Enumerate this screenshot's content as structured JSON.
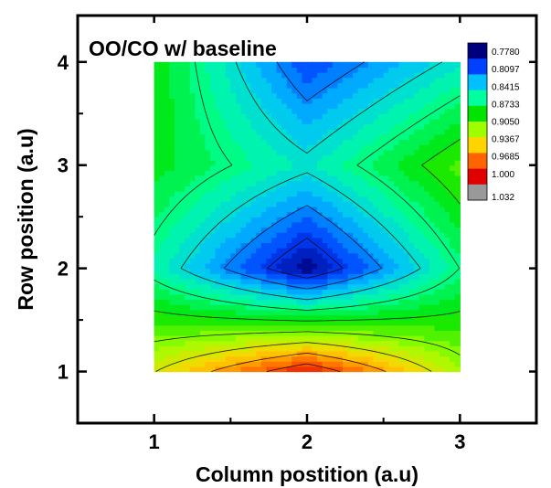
{
  "chart_data": {
    "type": "heatmap",
    "title": "OO/CO w/ baseline",
    "xlabel": "Column postition (a.u)",
    "ylabel": "Row position (a.u)",
    "x_ticks": [
      "1",
      "2",
      "3"
    ],
    "y_ticks": [
      "1",
      "2",
      "3",
      "4"
    ],
    "xlim": [
      0.5,
      3.5
    ],
    "ylim": [
      0.5,
      4.45
    ],
    "x": [
      1,
      2,
      3
    ],
    "y": [
      1,
      2,
      3,
      4
    ],
    "z": [
      [
        0.955,
        1.025,
        0.94
      ],
      [
        0.87,
        0.78,
        0.88
      ],
      [
        0.9,
        0.86,
        0.92
      ],
      [
        0.905,
        0.81,
        0.86
      ]
    ],
    "colorbar": {
      "levels": [
        "0.7780",
        "0.8097",
        "0.8415",
        "0.8733",
        "0.9050",
        "0.9367",
        "0.9685",
        "1.000",
        "1.032"
      ],
      "min": 0.778,
      "max": 1.032,
      "colors": [
        "#00007f",
        "#0040ff",
        "#00c0ff",
        "#00ff9f",
        "#00e400",
        "#9fff00",
        "#ffd400",
        "#ff6400",
        "#e00000",
        "#999999"
      ]
    }
  }
}
